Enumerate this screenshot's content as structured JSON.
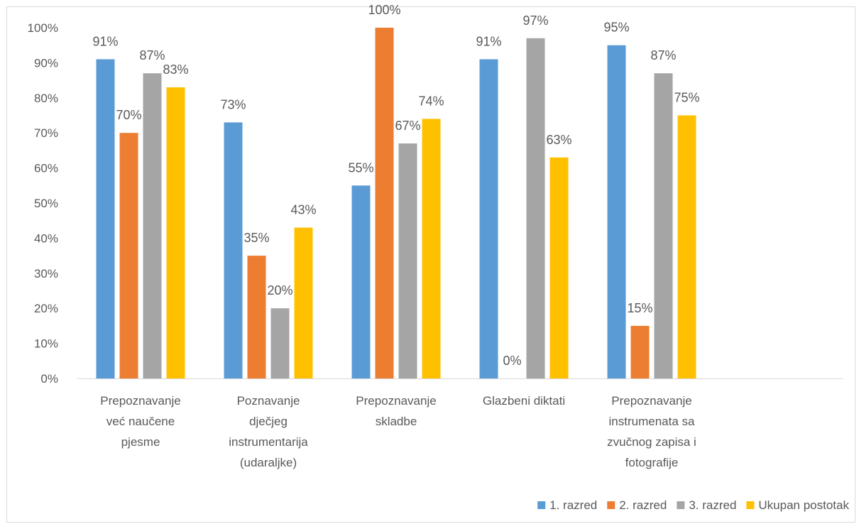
{
  "chart_data": {
    "type": "bar",
    "categories": [
      [
        "Prepoznavanje",
        "već naučene",
        "pjesme"
      ],
      [
        "Poznavanje",
        "dječjeg",
        "instrumentarija",
        "(udaraljke)"
      ],
      [
        "Prepoznavanje",
        "skladbe"
      ],
      [
        "Glazbeni diktati"
      ],
      [
        "Prepoznavanje",
        "instrumenata sa",
        "zvučnog zapisa i",
        "fotografije"
      ],
      []
    ],
    "series": [
      {
        "name": "1. razred",
        "color": "#5b9bd5",
        "values": [
          91,
          73,
          55,
          91,
          95,
          null
        ]
      },
      {
        "name": "2. razred",
        "color": "#ed7d31",
        "values": [
          70,
          35,
          100,
          0,
          15,
          null
        ]
      },
      {
        "name": "3. razred",
        "color": "#a5a5a5",
        "values": [
          87,
          20,
          67,
          97,
          87,
          null
        ]
      },
      {
        "name": "Ukupan postotak",
        "color": "#ffc000",
        "values": [
          83,
          43,
          74,
          63,
          75,
          null
        ]
      }
    ],
    "data_labels": [
      [
        "91%",
        "73%",
        "55%",
        "91%",
        "95%",
        ""
      ],
      [
        "70%",
        "35%",
        "100%",
        "0%",
        "15%",
        ""
      ],
      [
        "87%",
        "20%",
        "67%",
        "97%",
        "87%",
        ""
      ],
      [
        "83%",
        "43%",
        "74%",
        "63%",
        "75%",
        ""
      ]
    ],
    "y_ticks": [
      "0%",
      "10%",
      "20%",
      "30%",
      "40%",
      "50%",
      "60%",
      "70%",
      "80%",
      "90%",
      "100%"
    ],
    "ylim": [
      0,
      100
    ],
    "grid": false,
    "legend_position": "bottom-right",
    "title": "",
    "xlabel": "",
    "ylabel": ""
  }
}
